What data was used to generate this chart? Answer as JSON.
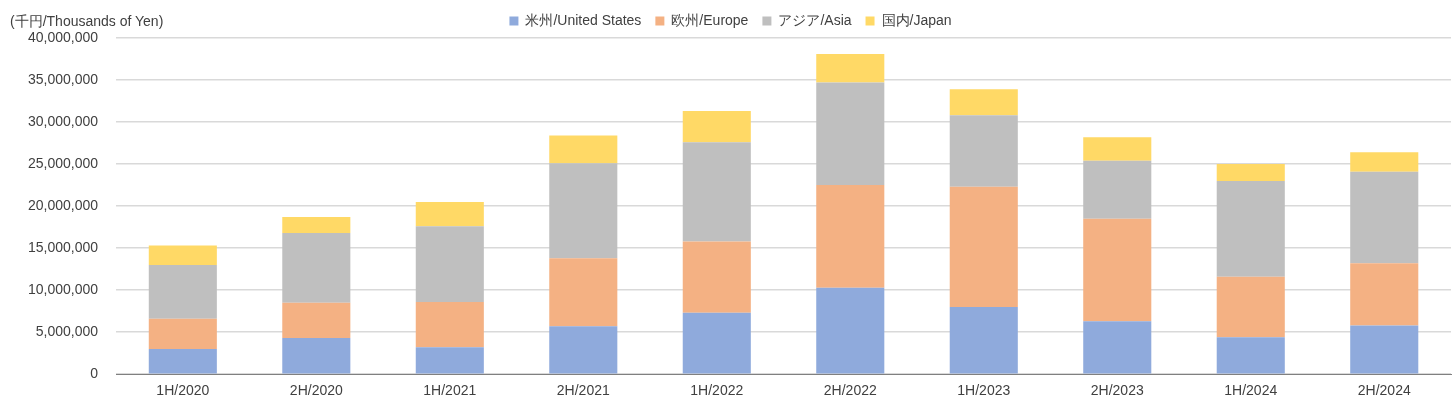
{
  "chart_data": {
    "type": "bar",
    "stacked": true,
    "ylabel": "(千円/Thousands of Yen)",
    "categories": [
      "1H/2020",
      "2H/2020",
      "1H/2021",
      "2H/2021",
      "1H/2022",
      "2H/2022",
      "1H/2023",
      "2H/2023",
      "1H/2024",
      "2H/2024"
    ],
    "series": [
      {
        "name": "米州/United States",
        "color": "#8faadc",
        "values": [
          3000000,
          4300000,
          3200000,
          5700000,
          7300000,
          10300000,
          8000000,
          6300000,
          4400000,
          5800000
        ]
      },
      {
        "name": "欧州/Europe",
        "color": "#f4b183",
        "values": [
          3600000,
          4200000,
          5400000,
          8100000,
          8500000,
          12200000,
          14300000,
          12200000,
          7200000,
          7400000
        ]
      },
      {
        "name": "アジア/Asia",
        "color": "#bfbfbf",
        "values": [
          6400000,
          8300000,
          9000000,
          11300000,
          11800000,
          12200000,
          8500000,
          6900000,
          11400000,
          10900000
        ]
      },
      {
        "name": "国内/Japan",
        "color": "#ffd966",
        "values": [
          2300000,
          1900000,
          2900000,
          3300000,
          3700000,
          3400000,
          3100000,
          2800000,
          2000000,
          2300000
        ]
      }
    ],
    "ylim": [
      0,
      40000000
    ],
    "yticks": [
      {
        "value": 0,
        "label": "0"
      },
      {
        "value": 5000000,
        "label": "5,000,000"
      },
      {
        "value": 10000000,
        "label": "10,000,000"
      },
      {
        "value": 15000000,
        "label": "15,000,000"
      },
      {
        "value": 20000000,
        "label": "20,000,000"
      },
      {
        "value": 25000000,
        "label": "25,000,000"
      },
      {
        "value": 30000000,
        "label": "30,000,000"
      },
      {
        "value": 35000000,
        "label": "35,000,000"
      },
      {
        "value": 40000000,
        "label": "40,000,000"
      }
    ],
    "grid": "y",
    "legend": "top"
  }
}
